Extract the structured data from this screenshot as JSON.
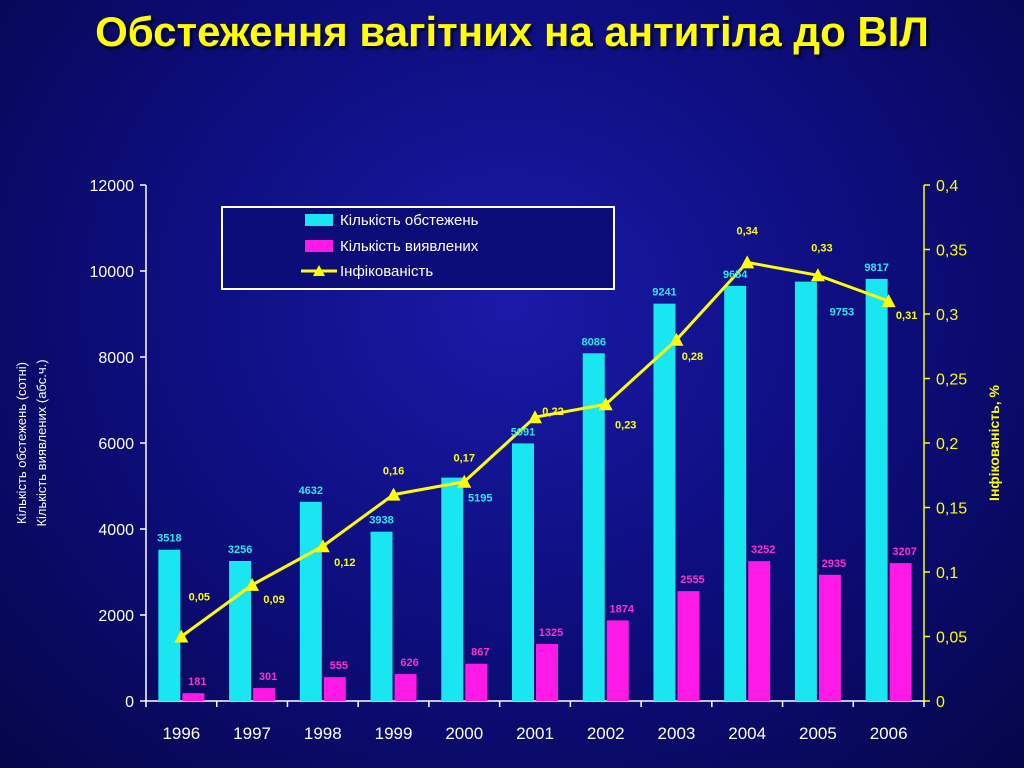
{
  "chart_data": {
    "type": "bar",
    "title": "Обстеження вагітних  на  антитіла до ВІЛ",
    "categories": [
      "1996",
      "1997",
      "1998",
      "1999",
      "2000",
      "2001",
      "2002",
      "2003",
      "2004",
      "2005",
      "2006"
    ],
    "series": [
      {
        "name": "Кількість обстежень",
        "kind": "bar",
        "axis": "left",
        "values": [
          3518,
          3256,
          4632,
          3938,
          5195,
          5991,
          8086,
          9241,
          9654,
          9753,
          9817
        ],
        "labels": [
          "3518",
          "3256",
          "4632",
          "3938",
          "5195",
          "5991",
          "8086",
          "9241",
          "9654",
          "9753",
          "9817"
        ],
        "color": "#19e6f0"
      },
      {
        "name": "Кількість виявлених",
        "kind": "bar",
        "axis": "left",
        "values": [
          181,
          301,
          555,
          626,
          867,
          1325,
          1874,
          2555,
          3252,
          2935,
          3207
        ],
        "labels": [
          "181",
          "301",
          "555",
          "626",
          "867",
          "1325",
          "1874",
          "2555",
          "3252",
          "2935",
          "3207"
        ],
        "color": "#ff19e6"
      },
      {
        "name": "Інфікованість",
        "kind": "line",
        "axis": "right",
        "values": [
          0.05,
          0.09,
          0.12,
          0.16,
          0.17,
          0.22,
          0.23,
          0.28,
          0.34,
          0.33,
          0.31
        ],
        "labels": [
          "0,05",
          "0,09",
          "0,12",
          "0,16",
          "0,17",
          "0,22",
          "0,23",
          "0,28",
          "0,34",
          "0,33",
          "0,31"
        ],
        "color": "#ffff00"
      }
    ],
    "ylabel_left_line1": "Кількість обстежень (сотні)",
    "ylabel_left_line2": "Кількість виявлених (абс.ч.)",
    "ylabel_right": "Інфікованість, %",
    "ylim_left": [
      0,
      12000
    ],
    "yticks_left": [
      "0",
      "2000",
      "4000",
      "6000",
      "8000",
      "10000",
      "12000"
    ],
    "ylim_right": [
      0,
      0.4
    ],
    "yticks_right": [
      "0",
      "0,05",
      "0,1",
      "0,15",
      "0,2",
      "0,25",
      "0,3",
      "0,35",
      "0,4"
    ],
    "legend_position": "top-left",
    "grid": false
  }
}
